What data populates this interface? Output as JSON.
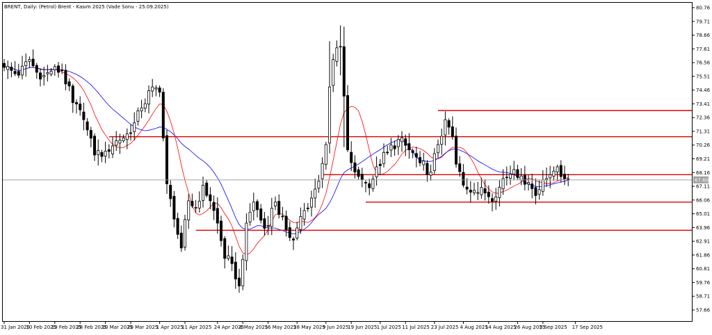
{
  "chart_title": "BRENT, Daily:  (Petrol) Brent - Kasım 2025 (Vade Sonu - 25.09.2025)",
  "current_price_label": "67.60",
  "colors": {
    "background": "#ffffff",
    "frame": "#000000",
    "candle": "#000000",
    "ma_fast": "#ff0000",
    "ma_slow": "#0000ff",
    "levels": "#e00000",
    "price_line": "#a0a0a0",
    "price_label_bg": "#a0a0a0"
  },
  "chart_data": {
    "type": "candlestick",
    "title": "BRENT, Daily:  (Petrol) Brent - Kasım 2025 (Vade Sonu - 25.09.2025)",
    "ylim": [
      56.6,
      81.0
    ],
    "y_ticks": [
      "80.76",
      "79.71",
      "78.66",
      "77.61",
      "76.56",
      "75.51",
      "74.46",
      "73.41",
      "72.36",
      "71.31",
      "70.26",
      "69.21",
      "68.16",
      "67.11",
      "66.06",
      "65.01",
      "63.96",
      "62.91",
      "61.86",
      "60.81",
      "59.76",
      "58.71",
      "57.66"
    ],
    "x_tick_labels": [
      "31 Jan 2025",
      "10 Feb 2025",
      "19 Feb 2025",
      "28 Feb 2025",
      "10 Mar 2025",
      "20 Mar 2025",
      "1 Apr 2025",
      "11 Apr 2025",
      "24 Apr 2025",
      "6 May 2025",
      "16 May 2025",
      "28 May 2025",
      "9 Jun 2025",
      "19 Jun 2025",
      "1 Jul 2025",
      "11 Jul 2025",
      "23 Jul 2025",
      "4 Aug 2025",
      "14 Aug 2025",
      "26 Aug 2025",
      "5 Sep 2025",
      "17 Sep 2025"
    ],
    "tick_bar_index": [
      0,
      7,
      14,
      21,
      28,
      35,
      43,
      50,
      59,
      66,
      73,
      81,
      89,
      96,
      104,
      111,
      119,
      127,
      134,
      142,
      149,
      158
    ],
    "last_price": 67.6,
    "horizontal_levels": [
      {
        "value": 72.9,
        "from_bar": 120
      },
      {
        "value": 70.9,
        "from_bar": 29
      },
      {
        "value": 68.0,
        "from_bar": 88
      },
      {
        "value": 65.9,
        "from_bar": 100
      },
      {
        "value": 63.75,
        "from_bar": 53
      }
    ],
    "price_waypoints": [
      [
        0,
        76.2
      ],
      [
        4,
        75.6
      ],
      [
        7,
        76.8
      ],
      [
        10,
        75.3
      ],
      [
        13,
        75.9
      ],
      [
        16,
        76.0
      ],
      [
        19,
        73.5
      ],
      [
        22,
        72.2
      ],
      [
        25,
        69.5
      ],
      [
        28,
        69.8
      ],
      [
        31,
        70.6
      ],
      [
        35,
        71.2
      ],
      [
        38,
        73.1
      ],
      [
        41,
        74.7
      ],
      [
        43,
        74.3
      ],
      [
        45,
        67.3
      ],
      [
        47,
        64.6
      ],
      [
        49,
        62.4
      ],
      [
        51,
        66.0
      ],
      [
        53,
        65.5
      ],
      [
        55,
        67.2
      ],
      [
        57,
        66.0
      ],
      [
        59,
        64.3
      ],
      [
        61,
        61.6
      ],
      [
        63,
        61.2
      ],
      [
        65,
        59.5
      ],
      [
        67,
        64.3
      ],
      [
        69,
        65.9
      ],
      [
        72,
        63.9
      ],
      [
        75,
        65.9
      ],
      [
        78,
        63.8
      ],
      [
        80,
        63.0
      ],
      [
        82,
        64.8
      ],
      [
        84,
        65.4
      ],
      [
        87,
        67.5
      ],
      [
        89,
        70.3
      ],
      [
        90,
        74.7
      ],
      [
        91,
        76.8
      ],
      [
        93,
        77.8
      ],
      [
        95,
        69.9
      ],
      [
        97,
        68.2
      ],
      [
        99,
        67.6
      ],
      [
        101,
        67.0
      ],
      [
        103,
        68.6
      ],
      [
        106,
        69.7
      ],
      [
        109,
        70.7
      ],
      [
        112,
        69.9
      ],
      [
        115,
        68.9
      ],
      [
        118,
        68.2
      ],
      [
        120,
        70.3
      ],
      [
        122,
        72.2
      ],
      [
        124,
        70.9
      ],
      [
        125,
        68.8
      ],
      [
        127,
        67.2
      ],
      [
        130,
        66.8
      ],
      [
        133,
        66.6
      ],
      [
        136,
        66.3
      ],
      [
        138,
        67.7
      ],
      [
        141,
        68.4
      ],
      [
        143,
        67.9
      ],
      [
        145,
        67.4
      ],
      [
        147,
        66.4
      ],
      [
        149,
        67.6
      ],
      [
        151,
        68.0
      ],
      [
        153,
        68.6
      ],
      [
        155,
        67.7
      ],
      [
        156,
        67.6
      ]
    ],
    "special_ranges": [
      {
        "index": 90,
        "high": 78.2,
        "low": 70.1
      },
      {
        "index": 93,
        "high": 79.4,
        "low": 75.6
      },
      {
        "index": 94,
        "high": 79.3,
        "low": 70.1
      }
    ],
    "series": [
      {
        "name": "MA fast",
        "color": "#ff0000",
        "period": 9
      },
      {
        "name": "MA slow",
        "color": "#0000ff",
        "period": 21
      }
    ],
    "grid": false
  }
}
